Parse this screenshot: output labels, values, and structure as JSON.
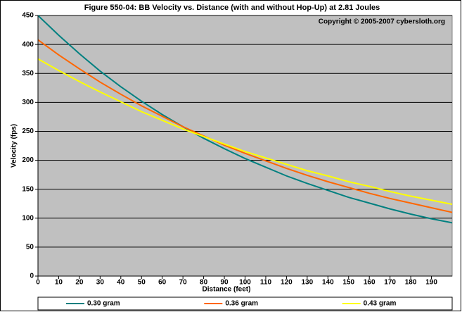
{
  "chart_data": {
    "type": "line",
    "title": "Figure 550-04:  BB Velocity vs. Distance (with and without Hop-Up) at 2.81 Joules",
    "annotation": "Copyright © 2005-2007 cybersloth.org",
    "x_label": "Distance (feet)",
    "y_label": "Velocity (fps)",
    "x": [
      0,
      10,
      20,
      30,
      40,
      50,
      60,
      70,
      80,
      90,
      100,
      110,
      120,
      130,
      140,
      150,
      160,
      170,
      180,
      190,
      200
    ],
    "series": [
      {
        "name": "0.30 gram",
        "color": "#008080",
        "values": [
          450,
          416,
          384,
          354,
          327,
          302,
          279,
          258,
          238,
          220,
          203,
          188,
          173,
          160,
          148,
          136,
          126,
          116,
          107,
          99,
          92
        ]
      },
      {
        "name": "0.36 gram",
        "color": "#ff6600",
        "values": [
          408,
          382,
          358,
          335,
          314,
          294,
          276,
          258,
          242,
          226,
          212,
          199,
          186,
          174,
          163,
          153,
          143,
          134,
          126,
          118,
          110
        ]
      },
      {
        "name": "0.43 gram",
        "color": "#ffff00",
        "values": [
          375,
          355,
          336,
          318,
          301,
          284,
          269,
          254,
          241,
          228,
          215,
          204,
          193,
          182,
          173,
          163,
          155,
          146,
          138,
          131,
          124
        ]
      }
    ],
    "xlim": [
      0,
      200
    ],
    "xticks": [
      0,
      10,
      20,
      30,
      40,
      50,
      60,
      70,
      80,
      90,
      100,
      110,
      120,
      130,
      140,
      150,
      160,
      170,
      180,
      190
    ],
    "ylim": [
      0,
      450
    ],
    "yticks": [
      0,
      50,
      100,
      150,
      200,
      250,
      300,
      350,
      400,
      450
    ],
    "grid": true,
    "plot_background": "#c0c0c0",
    "legend": "bottom"
  }
}
